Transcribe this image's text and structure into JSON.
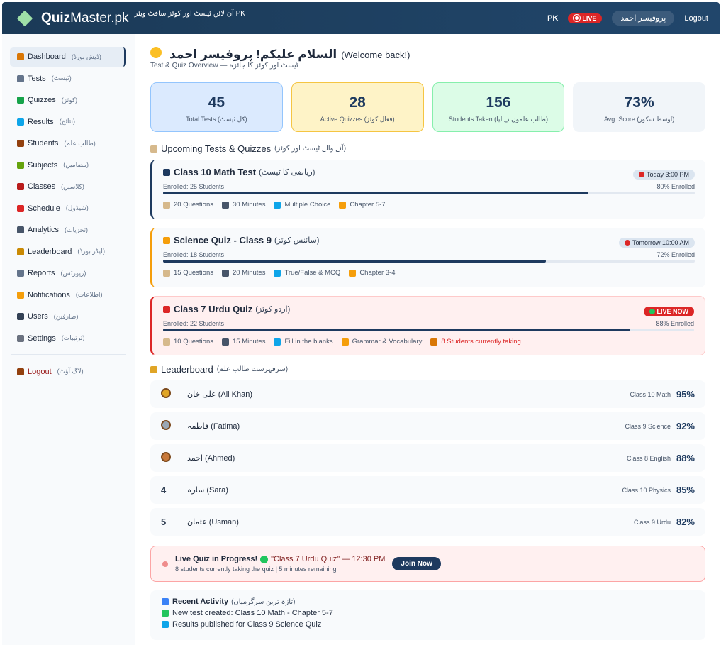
{
  "header": {
    "logo_main": "Quiz",
    "logo_accent": "Master.pk",
    "tagline": "آن لائن ٹیسٹ اور کوئز سافٹ ویئر PK",
    "country": "PK",
    "live": "LIVE",
    "user": "پروفیسر احمد",
    "logout": "Logout"
  },
  "sidebar": {
    "items": [
      {
        "label": "Dashboard",
        "urdu": "(ڈیش بورڈ)",
        "active": true
      },
      {
        "label": "Tests",
        "urdu": "(ٹیسٹ)"
      },
      {
        "label": "Quizzes",
        "urdu": "(کوئز)"
      },
      {
        "label": "Results",
        "urdu": "(نتائج)"
      },
      {
        "label": "Students",
        "urdu": "(طالب علم)"
      },
      {
        "label": "Subjects",
        "urdu": "(مضامین)"
      },
      {
        "label": "Classes",
        "urdu": "(کلاسیں)"
      },
      {
        "label": "Schedule",
        "urdu": "(شیڈول)"
      },
      {
        "label": "Analytics",
        "urdu": "(تجزیات)"
      },
      {
        "label": "Leaderboard",
        "urdu": "(لیڈر بورڈ)"
      },
      {
        "label": "Reports",
        "urdu": "(رپورٹس)"
      },
      {
        "label": "Notifications",
        "urdu": "(اطلاعات)"
      },
      {
        "label": "Users",
        "urdu": "(صارفین)"
      },
      {
        "label": "Settings",
        "urdu": "(ترتیبات)"
      }
    ],
    "logout": {
      "label": "Logout",
      "urdu": "(لاگ آؤٹ)"
    }
  },
  "welcome": {
    "title": "السلام علیکم! پروفیسر احمد",
    "subtitle": "(Welcome back!)",
    "overview": "Test & Quiz Overview — ٹیسٹ اور کوئز کا جائزہ"
  },
  "stats": [
    {
      "value": "45",
      "label": "Total Tests (کل ٹیسٹ)",
      "color": "#dbeafe",
      "border": "#93c5fd"
    },
    {
      "value": "28",
      "label": "Active Quizzes (فعال کوئز)",
      "color": "#fef3c7",
      "border": "#f5c542"
    },
    {
      "value": "156",
      "label": "Students Taken (طالب علموں نے لیا)",
      "color": "#dcfce7",
      "border": "#86efac"
    },
    {
      "value": "73%",
      "label": "Avg. Score (اوسط سکور)",
      "color": "#f1f5f9",
      "border": "#f1f5f9"
    }
  ],
  "upcoming": {
    "title": "Upcoming Tests & Quizzes",
    "urdu": "(آنے والے ٹیسٹ اور کوئز)",
    "items": [
      {
        "title": "Class 10 Math Test",
        "urdu": "(ریاضی کا ٹیسٹ)",
        "badge": "Today 3:00 PM",
        "enrolled": "Enrolled: 25 Students",
        "progress": 80,
        "progress_label": "80% Enrolled",
        "meta": [
          "20 Questions",
          "30 Minutes",
          "Multiple Choice",
          "Chapter 5-7"
        ],
        "color": "#1e3a5f"
      },
      {
        "title": "Science Quiz - Class 9",
        "urdu": "(سائنس کوئز)",
        "badge": "Tomorrow 10:00 AM",
        "enrolled": "Enrolled: 18 Students",
        "progress": 72,
        "progress_label": "72% Enrolled",
        "meta": [
          "15 Questions",
          "20 Minutes",
          "True/False & MCQ",
          "Chapter 3-4"
        ],
        "color": "#f59e0b"
      },
      {
        "title": "Class 7 Urdu Quiz",
        "urdu": "(اردو کوئز)",
        "badge": "LIVE NOW",
        "enrolled": "Enrolled: 22 Students",
        "progress": 88,
        "progress_label": "88% Enrolled",
        "meta": [
          "10 Questions",
          "15 Minutes",
          "Fill in the blanks",
          "Grammar & Vocabulary"
        ],
        "alert": "8 Students currently taking",
        "color": "#dc2626",
        "live": true
      }
    ]
  },
  "leaderboard": {
    "title": "Leaderboard",
    "urdu": "(سرفہرست طالب علم)",
    "rows": [
      {
        "name": "علی خان (Ali Khan)",
        "class": "Class 10 Math",
        "score": "95%",
        "medal": "#e0a526"
      },
      {
        "name": "فاطمہ (Fatima)",
        "class": "Class 9 Science",
        "score": "92%",
        "medal": "#9aa7b4"
      },
      {
        "name": "احمد (Ahmed)",
        "class": "Class 8 English",
        "score": "88%",
        "medal": "#c8793a"
      },
      {
        "rank": "4",
        "name": "سارہ (Sara)",
        "class": "Class 10 Physics",
        "score": "85%"
      },
      {
        "rank": "5",
        "name": "عثمان (Usman)",
        "class": "Class 9 Urdu",
        "score": "82%"
      }
    ]
  },
  "banner": {
    "title": "Live Quiz in Progress!",
    "detail": "\"Class 7 Urdu Quiz\" — 12:30 PM",
    "sub": "8 students currently taking the quiz | 5 minutes remaining",
    "button": "Join Now"
  },
  "activity": {
    "title": "Recent Activity",
    "urdu": "(تازہ ترین سرگرمیاں)",
    "items": [
      "New test created: Class 10 Math - Chapter 5-7",
      "Results published for Class 9 Science Quiz"
    ]
  }
}
